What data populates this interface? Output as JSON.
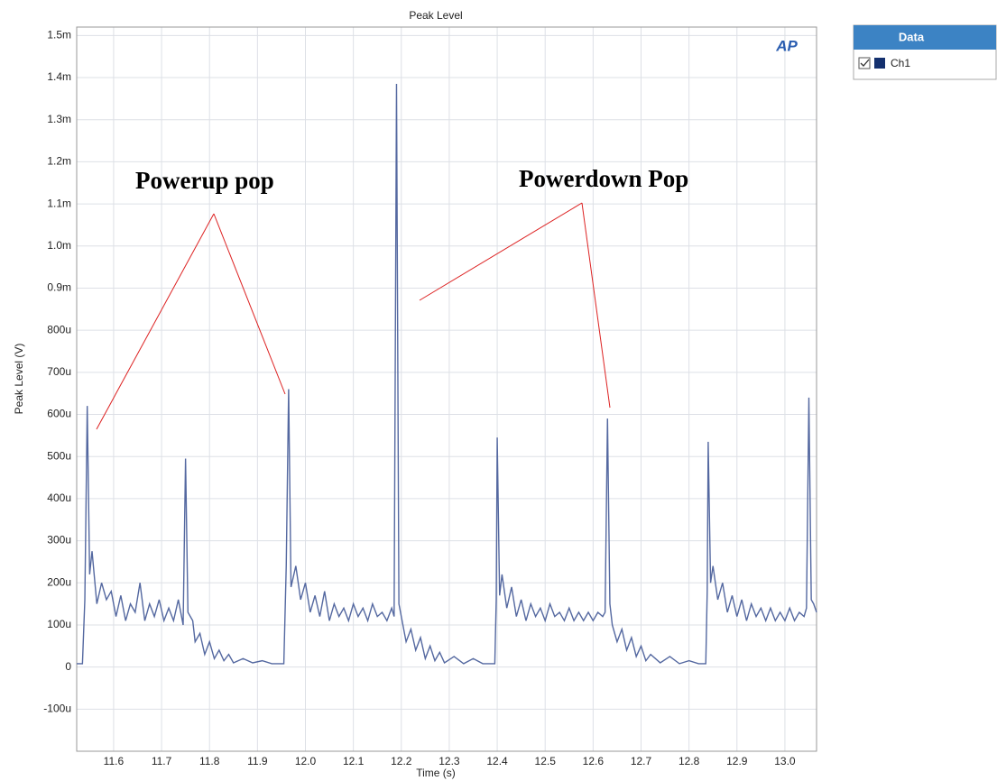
{
  "chart_data": {
    "type": "line",
    "title": "Peak Level",
    "x_label": "Time (s)",
    "y_label": "Peak Level (V)",
    "logo": "AP",
    "legend_title": "Data",
    "annotations": [
      "Powerup pop",
      "Powerdown Pop"
    ],
    "grid": true,
    "xlim": [
      11.523,
      13.066
    ],
    "ylim": [
      -0.0002,
      0.00152
    ],
    "xticks": [
      11.6,
      11.7,
      11.8,
      11.9,
      {
        "value": 12,
        "label": "12.0"
      },
      12.1,
      12.2,
      12.3,
      12.4,
      12.5,
      12.6,
      12.7,
      12.8,
      12.9,
      {
        "value": 13,
        "label": "13.0"
      }
    ],
    "yticks": [
      {
        "value": -0.0001,
        "label": "-100u"
      },
      0,
      {
        "value": 0.0001,
        "label": "100u"
      },
      {
        "value": 0.0002,
        "label": "200u"
      },
      {
        "value": 0.0003,
        "label": "300u"
      },
      {
        "value": 0.0004,
        "label": "400u"
      },
      {
        "value": 0.0005,
        "label": "500u"
      },
      {
        "value": 0.0006,
        "label": "600u"
      },
      {
        "value": 0.0007,
        "label": "700u"
      },
      {
        "value": 0.0008,
        "label": "800u"
      },
      {
        "value": 0.0009,
        "label": "0.9m"
      },
      {
        "value": 0.001,
        "label": "1.0m"
      },
      {
        "value": 0.0011,
        "label": "1.1m"
      },
      {
        "value": 0.0012,
        "label": "1.2m"
      },
      {
        "value": 0.0013,
        "label": "1.3m"
      },
      {
        "value": 0.0014,
        "label": "1.4m"
      },
      {
        "value": 0.0015,
        "label": "1.5m"
      }
    ],
    "x": [
      11.523,
      11.535,
      11.54,
      11.545,
      11.55,
      11.555,
      11.565,
      11.575,
      11.585,
      11.595,
      11.605,
      11.615,
      11.625,
      11.635,
      11.645,
      11.655,
      11.665,
      11.675,
      11.685,
      11.695,
      11.705,
      11.715,
      11.725,
      11.735,
      11.745,
      11.75,
      11.755,
      11.765,
      11.77,
      11.78,
      11.79,
      11.8,
      11.81,
      11.82,
      11.83,
      11.84,
      11.85,
      11.87,
      11.89,
      11.91,
      11.93,
      11.955,
      11.96,
      11.965,
      11.97,
      11.98,
      11.99,
      12,
      12.01,
      12.02,
      12.03,
      12.04,
      12.05,
      12.06,
      12.07,
      12.08,
      12.09,
      12.1,
      12.11,
      12.12,
      12.13,
      12.14,
      12.15,
      12.16,
      12.17,
      12.18,
      12.185,
      12.19,
      12.195,
      12.2,
      12.21,
      12.22,
      12.23,
      12.24,
      12.25,
      12.26,
      12.27,
      12.28,
      12.29,
      12.31,
      12.33,
      12.35,
      12.37,
      12.395,
      12.398,
      12.4,
      12.405,
      12.41,
      12.42,
      12.43,
      12.44,
      12.45,
      12.46,
      12.47,
      12.48,
      12.49,
      12.5,
      12.51,
      12.52,
      12.53,
      12.54,
      12.55,
      12.56,
      12.57,
      12.58,
      12.59,
      12.6,
      12.61,
      12.62,
      12.625,
      12.63,
      12.635,
      12.64,
      12.65,
      12.66,
      12.67,
      12.68,
      12.69,
      12.7,
      12.71,
      12.72,
      12.74,
      12.76,
      12.78,
      12.8,
      12.82,
      12.835,
      12.838,
      12.84,
      12.845,
      12.85,
      12.86,
      12.87,
      12.88,
      12.89,
      12.9,
      12.91,
      12.92,
      12.93,
      12.94,
      12.95,
      12.96,
      12.97,
      12.98,
      12.99,
      13,
      13.01,
      13.02,
      13.03,
      13.04,
      13.045,
      13.05,
      13.055,
      13.06,
      13.066
    ],
    "series": [
      {
        "name": "Ch1",
        "color": "#5468a0",
        "legend_color": "#14306e",
        "values": [
          8e-06,
          8e-06,
          0.00016,
          0.00062,
          0.00022,
          0.000275,
          0.00015,
          0.0002,
          0.00016,
          0.00018,
          0.00012,
          0.00017,
          0.00011,
          0.00015,
          0.00013,
          0.0002,
          0.00011,
          0.00015,
          0.00012,
          0.00016,
          0.00011,
          0.00014,
          0.00011,
          0.00016,
          0.0001,
          0.000495,
          0.00013,
          0.00011,
          6e-05,
          8e-05,
          3e-05,
          6e-05,
          2e-05,
          4e-05,
          1.5e-05,
          3e-05,
          1e-05,
          2e-05,
          1e-05,
          1.5e-05,
          8e-06,
          8e-06,
          0.00024,
          0.00066,
          0.00019,
          0.00024,
          0.00016,
          0.0002,
          0.00013,
          0.00017,
          0.00012,
          0.00018,
          0.00011,
          0.00015,
          0.00012,
          0.00014,
          0.00011,
          0.00015,
          0.00012,
          0.00014,
          0.00011,
          0.00015,
          0.00012,
          0.00013,
          0.00011,
          0.00014,
          0.00012,
          0.001385,
          0.00015,
          0.00012,
          6e-05,
          9e-05,
          4e-05,
          7e-05,
          2e-05,
          5e-05,
          1.5e-05,
          3.5e-05,
          1e-05,
          2.5e-05,
          8e-06,
          2e-05,
          8e-06,
          8e-06,
          0.00016,
          0.000545,
          0.00017,
          0.00022,
          0.00014,
          0.00019,
          0.00012,
          0.00016,
          0.00011,
          0.00015,
          0.00012,
          0.00014,
          0.00011,
          0.00015,
          0.00012,
          0.00013,
          0.00011,
          0.00014,
          0.00011,
          0.00013,
          0.00011,
          0.00013,
          0.00011,
          0.00013,
          0.00012,
          0.00013,
          0.00059,
          0.00015,
          0.0001,
          6e-05,
          9e-05,
          4e-05,
          7e-05,
          2.5e-05,
          5e-05,
          1.5e-05,
          3e-05,
          1e-05,
          2.5e-05,
          8e-06,
          1.5e-05,
          8e-06,
          8e-06,
          0.00018,
          0.000535,
          0.0002,
          0.00024,
          0.00016,
          0.0002,
          0.00013,
          0.00017,
          0.00012,
          0.00016,
          0.00011,
          0.00015,
          0.00012,
          0.00014,
          0.00011,
          0.00014,
          0.00011,
          0.00013,
          0.00011,
          0.00014,
          0.00011,
          0.00013,
          0.00012,
          0.00014,
          0.00064,
          0.00016,
          0.00015,
          0.00013
        ]
      }
    ]
  }
}
